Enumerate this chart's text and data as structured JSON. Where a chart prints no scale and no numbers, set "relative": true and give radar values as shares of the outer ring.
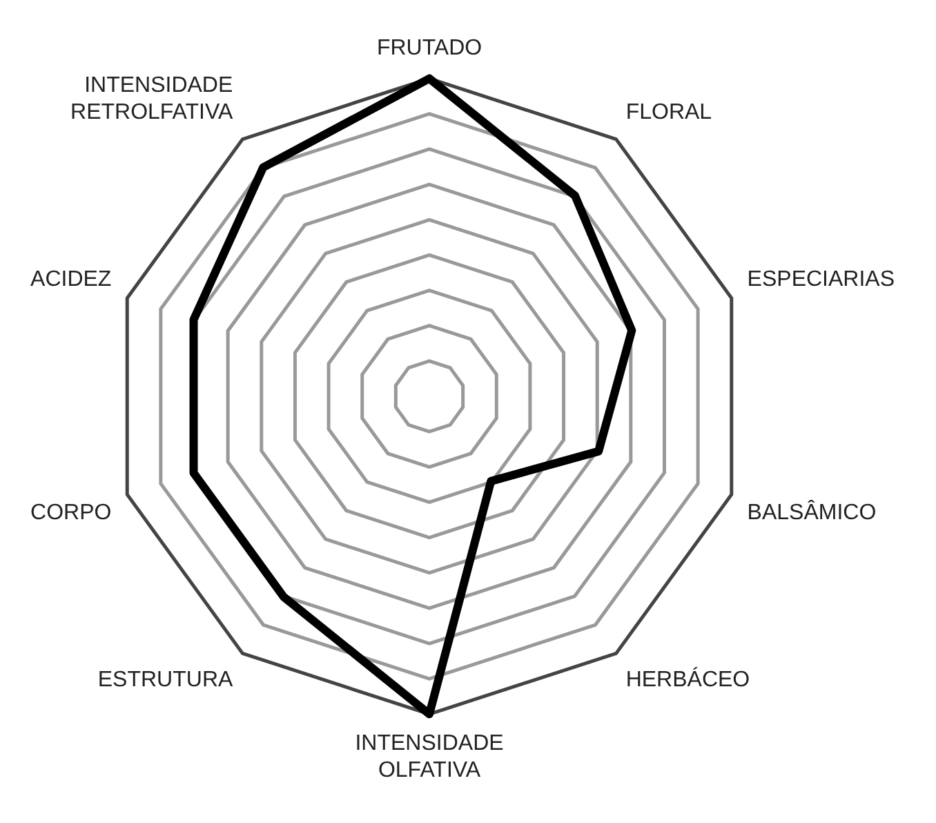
{
  "chart_data": {
    "type": "radar",
    "relative": true,
    "grid": true,
    "legend": false,
    "marker": "none",
    "categories": [
      "FRUTADO",
      "FLORAL",
      "ESPECIARIAS",
      "BALSÂMICO",
      "HERBÁCEO",
      "INTENSIDADE OLFATIVA",
      "ESTRUTURA",
      "CORPO",
      "ACIDEZ",
      "INTENSIDADE RETROLFATIVA"
    ],
    "series": [
      {
        "color": "#000000",
        "values": [
          1,
          0.78,
          0.67,
          0.56,
          0.33,
          1,
          0.78,
          0.78,
          0.78,
          0.89
        ]
      }
    ]
  }
}
